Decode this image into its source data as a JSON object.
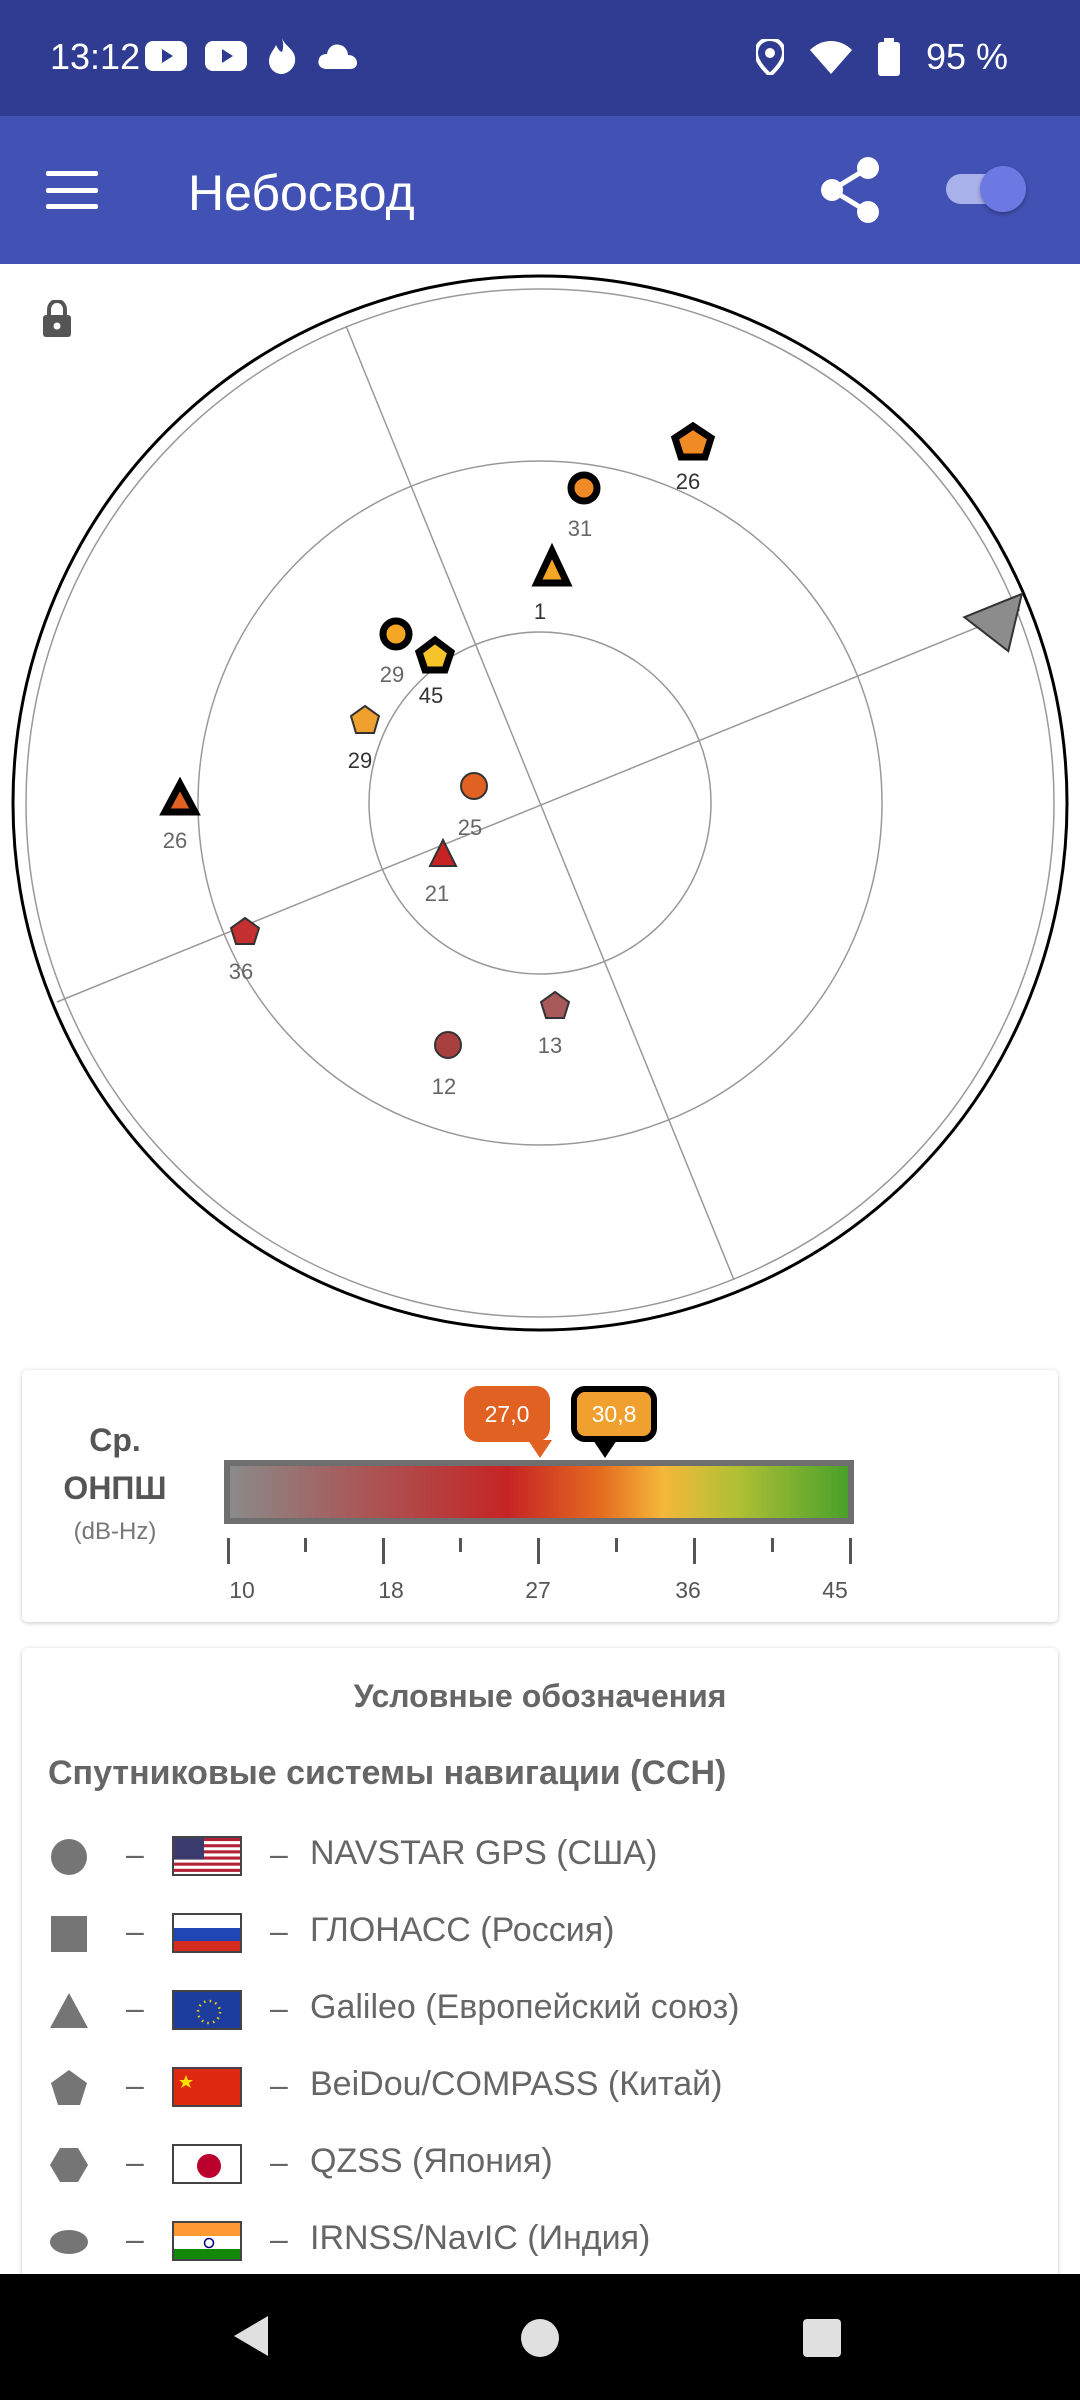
{
  "status_bar": {
    "time": "13:12",
    "battery_percent": "95 %",
    "icons_left": [
      "youtube-icon",
      "youtube-icon",
      "fire-icon",
      "cloud-icon"
    ],
    "icons_right": [
      "location-icon",
      "wifi-icon",
      "battery-icon"
    ]
  },
  "app_bar": {
    "title": "Небосвод",
    "menu_icon": "menu-icon",
    "share_icon": "share-icon",
    "toggle_on": true,
    "colors": {
      "status": "#2f3c91",
      "bar": "#4251b4"
    }
  },
  "skyplot": {
    "satellites": [
      {
        "label": "26",
        "shape": "pentagon",
        "color": "#f08a24",
        "outlined": true
      },
      {
        "label": "31",
        "shape": "circle",
        "color": "#f08a24",
        "outlined": true
      },
      {
        "label": "1",
        "shape": "triangle",
        "color": "#f5a623",
        "outlined": true
      },
      {
        "label": "29",
        "shape": "circle",
        "color": "#f5a623",
        "outlined": true
      },
      {
        "label": "45",
        "shape": "pentagon",
        "color": "#f5c32a",
        "outlined": true
      },
      {
        "label": "29",
        "shape": "pentagon",
        "color": "#f0a02e",
        "outlined": false
      },
      {
        "label": "25",
        "shape": "circle",
        "color": "#e06122",
        "outlined": false
      },
      {
        "label": "26",
        "shape": "triangle",
        "color": "#e06122",
        "outlined": true
      },
      {
        "label": "21",
        "shape": "triangle",
        "color": "#c62424",
        "outlined": false
      },
      {
        "label": "36",
        "shape": "pentagon",
        "color": "#c43030",
        "outlined": false
      },
      {
        "label": "13",
        "shape": "pentagon",
        "color": "#a85a5a",
        "outlined": false
      },
      {
        "label": "12",
        "shape": "circle",
        "color": "#a84040",
        "outlined": false
      }
    ]
  },
  "cn0": {
    "label_line1": "Ср.",
    "label_line2": "ОНПШ",
    "unit": "(dB-Hz)",
    "ticks": [
      "10",
      "18",
      "27",
      "36",
      "45"
    ],
    "range": [
      10,
      45
    ],
    "avg_in_view": {
      "value": "27,0",
      "numeric": 27.0,
      "color": "#e06122"
    },
    "avg_in_use": {
      "value": "30,8",
      "numeric": 30.8,
      "color": "#f0a02e"
    }
  },
  "legend": {
    "title": "Условные обозначения",
    "subtitle": "Спутниковые системы навигации (ССН)",
    "items": [
      {
        "shape": "circle",
        "flag": "usa-flag",
        "name": "NAVSTAR GPS (США)"
      },
      {
        "shape": "square",
        "flag": "russia-flag",
        "name": "ГЛОНАСС (Россия)"
      },
      {
        "shape": "triangle",
        "flag": "eu-flag",
        "name": "Galileo (Европейский союз)"
      },
      {
        "shape": "pentagon",
        "flag": "china-flag",
        "name": "BeiDou/COMPASS (Китай)"
      },
      {
        "shape": "hexagon",
        "flag": "japan-flag",
        "name": "QZSS (Япония)"
      },
      {
        "shape": "oval",
        "flag": "india-flag",
        "name": "IRNSS/NavIC (Индия)"
      }
    ]
  },
  "nav_bar": {
    "buttons": [
      "back-icon",
      "home-icon",
      "recents-icon"
    ]
  }
}
